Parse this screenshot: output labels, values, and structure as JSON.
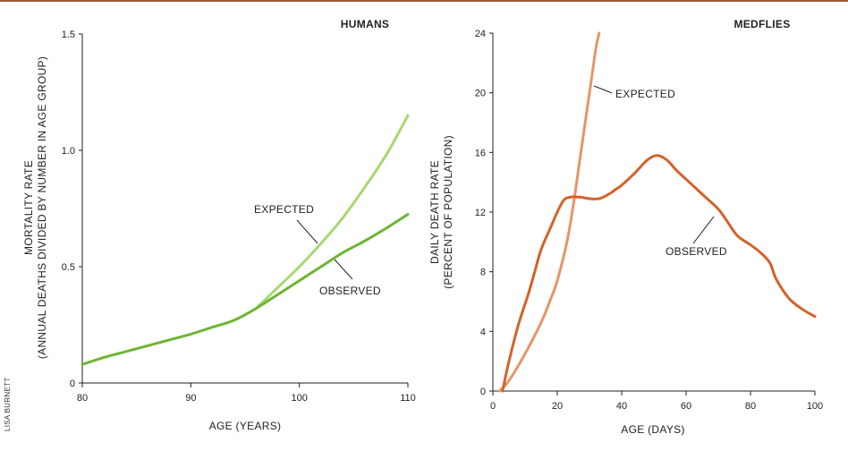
{
  "credit": "LISA BURNETT",
  "colors": {
    "human_expected": "#a6d86f",
    "human_observed": "#6db533",
    "fly_expected": "#e5956a",
    "fly_observed": "#d4622a",
    "axis": "#222222",
    "top_rule": "#9c5b3d"
  },
  "chart_data": [
    {
      "type": "line",
      "title": "HUMANS",
      "xlabel": "AGE (YEARS)",
      "ylabel": [
        "MORTALITY RATE",
        "(ANNUAL DEATHS DIVIDED BY NUMBER IN AGE GROUP)"
      ],
      "xlim": [
        80,
        110
      ],
      "ylim": [
        0,
        1.5
      ],
      "xticks": [
        80,
        90,
        100,
        110
      ],
      "xtick_labels": [
        "80",
        "90",
        "100",
        "110"
      ],
      "yticks": [
        0,
        0.5,
        1.0,
        1.5
      ],
      "ytick_labels": [
        "0",
        "0.5",
        "1.0",
        "1.5"
      ],
      "series": [
        {
          "name": "EXPECTED",
          "x": [
            96,
            98,
            100,
            102,
            104,
            106,
            108,
            110
          ],
          "y": [
            0.32,
            0.41,
            0.5,
            0.6,
            0.71,
            0.84,
            0.98,
            1.15
          ]
        },
        {
          "name": "OBSERVED",
          "x": [
            80,
            82,
            84,
            86,
            88,
            90,
            92,
            94,
            96,
            98,
            100,
            102,
            104,
            106,
            108,
            110
          ],
          "y": [
            0.08,
            0.11,
            0.135,
            0.16,
            0.185,
            0.21,
            0.24,
            0.27,
            0.32,
            0.38,
            0.44,
            0.5,
            0.56,
            0.61,
            0.665,
            0.725
          ]
        }
      ],
      "annotations": [
        {
          "text": "EXPECTED",
          "series": "EXPECTED",
          "at_x": 101.5
        },
        {
          "text": "OBSERVED",
          "series": "OBSERVED",
          "at_x": 103
        }
      ]
    },
    {
      "type": "line",
      "title": "MEDFLIES",
      "xlabel": "AGE (DAYS)",
      "ylabel": [
        "DAILY DEATH RATE",
        "(PERCENT OF POPULATION)"
      ],
      "xlim": [
        0,
        100
      ],
      "ylim": [
        0,
        24
      ],
      "xticks": [
        0,
        20,
        40,
        60,
        80,
        100
      ],
      "xtick_labels": [
        "0",
        "20",
        "40",
        "60",
        "80",
        "100"
      ],
      "yticks": [
        0,
        4,
        8,
        12,
        16,
        20,
        24
      ],
      "ytick_labels": [
        "0",
        "4",
        "8",
        "12",
        "16",
        "20",
        "24"
      ],
      "series": [
        {
          "name": "EXPECTED",
          "x": [
            2,
            5,
            10,
            15,
            18,
            20,
            23,
            25,
            27,
            28,
            30,
            31,
            32,
            33
          ],
          "y": [
            0,
            0.7,
            2.5,
            4.6,
            6.2,
            7.4,
            10,
            12.5,
            15.5,
            17,
            20,
            21.5,
            23,
            24
          ]
        },
        {
          "name": "OBSERVED",
          "x": [
            3,
            5,
            8,
            11,
            13,
            15,
            18,
            20,
            22,
            24,
            27,
            30,
            33,
            36,
            38,
            40,
            44,
            48,
            51,
            54,
            57,
            60,
            65,
            70,
            73,
            76,
            80,
            83,
            86,
            88,
            92,
            96,
            100
          ],
          "y": [
            0,
            2,
            4.5,
            6.5,
            8,
            9.5,
            11,
            12,
            12.8,
            13,
            13,
            12.9,
            12.9,
            13.2,
            13.5,
            13.8,
            14.6,
            15.5,
            15.8,
            15.5,
            14.8,
            14.2,
            13.2,
            12.2,
            11.3,
            10.4,
            9.8,
            9.3,
            8.6,
            7.5,
            6.2,
            5.5,
            5
          ]
        }
      ],
      "annotations": [
        {
          "text": "EXPECTED",
          "series": "EXPECTED",
          "at_x": 31
        },
        {
          "text": "OBSERVED",
          "series": "OBSERVED",
          "at_x": 68
        }
      ]
    }
  ]
}
